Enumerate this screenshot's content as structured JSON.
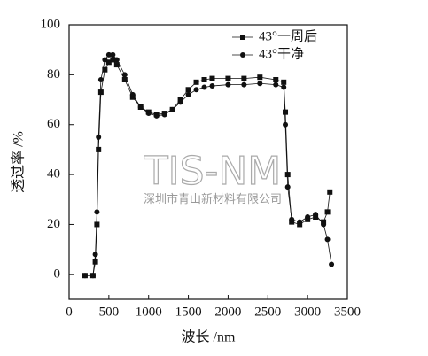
{
  "chart_data": {
    "type": "line",
    "x_label": "波长 /nm",
    "y_label": "透过率 /%",
    "xlim": [
      0,
      3500
    ],
    "xticks": [
      0,
      500,
      1000,
      1500,
      2000,
      2500,
      3000,
      3500
    ],
    "ylim": [
      -10,
      100
    ],
    "yticks": [
      0,
      20,
      40,
      60,
      80,
      100
    ],
    "legend": "upper right",
    "watermark": {
      "text": "TIS-NM",
      "subtext": "深圳市青山新材料有限公司"
    },
    "series": [
      {
        "name": "43°一周后",
        "color": "#111111",
        "marker": "square",
        "x": [
          200,
          300,
          330,
          350,
          370,
          400,
          450,
          500,
          550,
          600,
          700,
          800,
          900,
          1000,
          1100,
          1200,
          1300,
          1400,
          1500,
          1600,
          1700,
          1800,
          2000,
          2200,
          2400,
          2600,
          2700,
          2720,
          2750,
          2800,
          2900,
          3000,
          3100,
          3200,
          3250,
          3280
        ],
        "values": [
          -0.5,
          -0.5,
          5,
          20,
          50,
          73,
          82,
          85,
          86,
          84,
          78,
          71,
          67,
          65,
          64,
          64.5,
          66,
          70,
          74,
          77,
          78,
          78.5,
          78.5,
          78.5,
          79,
          78,
          77,
          65,
          40,
          21,
          20,
          22,
          23,
          21,
          25,
          33
        ]
      },
      {
        "name": "43°干净",
        "color": "#111111",
        "marker": "circle",
        "x": [
          200,
          300,
          330,
          350,
          370,
          400,
          450,
          500,
          550,
          600,
          700,
          800,
          900,
          1000,
          1100,
          1200,
          1300,
          1400,
          1500,
          1600,
          1700,
          1800,
          2000,
          2200,
          2400,
          2600,
          2700,
          2720,
          2750,
          2800,
          2900,
          3000,
          3100,
          3200,
          3250,
          3300
        ],
        "values": [
          -0.5,
          -0.5,
          8,
          25,
          55,
          78,
          86,
          88,
          88,
          86,
          80,
          72,
          67,
          64.5,
          63.5,
          64,
          66,
          69,
          72,
          74,
          75,
          75.5,
          76,
          76,
          76.5,
          76,
          75,
          60,
          35,
          22,
          21,
          23,
          24,
          20,
          14,
          4
        ]
      }
    ]
  }
}
